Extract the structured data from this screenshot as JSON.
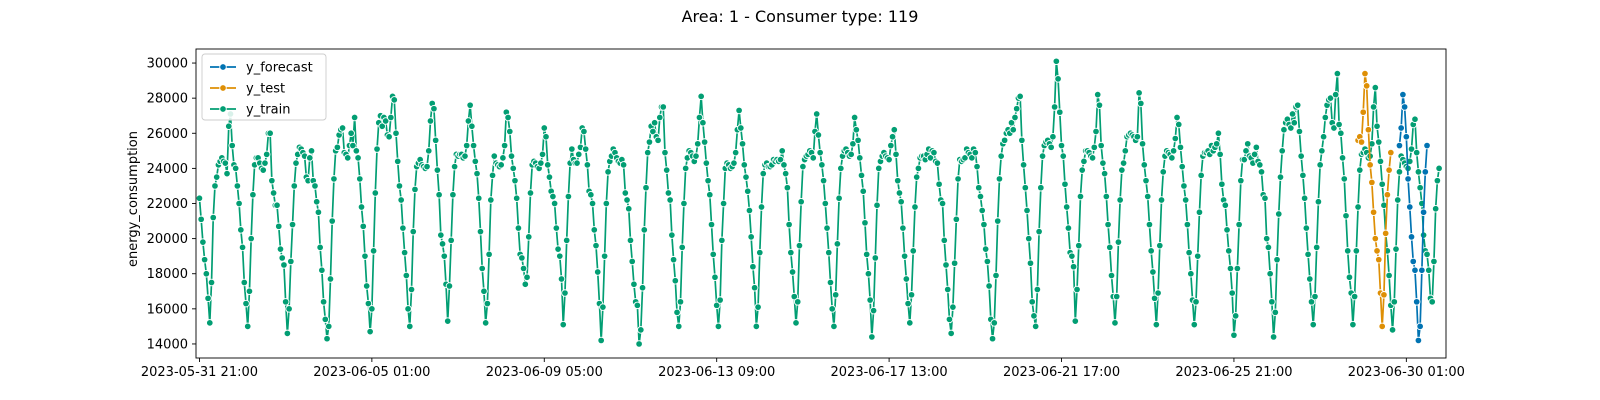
{
  "chart_data": {
    "type": "line",
    "title": "Area: 1 - Consumer type: 119",
    "xlabel": "",
    "ylabel": "energy_consumption",
    "x_tick_labels": [
      "2023-05-31 21:00",
      "2023-06-05 01:00",
      "2023-06-09 05:00",
      "2023-06-13 09:00",
      "2023-06-17 13:00",
      "2023-06-21 17:00",
      "2023-06-25 21:00",
      "2023-06-30 01:00"
    ],
    "y_ticks": [
      14000,
      16000,
      18000,
      20000,
      22000,
      24000,
      26000,
      28000,
      30000
    ],
    "ylim": [
      13200,
      30800
    ],
    "x_unit": "hours since 2023-05-31 21:00",
    "xlim": [
      -2,
      723
    ],
    "legend_position": "top-left",
    "grid": false,
    "series": [
      {
        "name": "y_forecast",
        "color": "#0173b2",
        "x_start": 696,
        "x_step": 1,
        "values": [
          25300,
          26300,
          28200,
          27500,
          25800,
          23400,
          21800,
          20100,
          18700,
          18200,
          16400,
          14200,
          15000,
          18200,
          21500,
          23800,
          25300
        ]
      },
      {
        "name": "y_test",
        "color": "#de8f05",
        "x_start": 672,
        "x_step": 1,
        "values": [
          25600,
          25800,
          25500,
          27200,
          29400,
          28700,
          26200,
          24200,
          23200,
          21500,
          20000,
          19300,
          18800,
          16900,
          15000,
          16800,
          20300,
          22500,
          23900,
          24900
        ]
      },
      {
        "name": "y_train",
        "color": "#029e73",
        "x_start": 0,
        "x_step": 1,
        "values": [
          22300,
          21100,
          19800,
          18800,
          18000,
          16600,
          15200,
          17500,
          21200,
          23000,
          23500,
          24200,
          24400,
          24600,
          24400,
          24300,
          23700,
          26400,
          27100,
          25300,
          24200,
          24000,
          23000,
          22000,
          20500,
          19500,
          17500,
          16300,
          15000,
          17000,
          20000,
          22500,
          24200,
          24600,
          24600,
          24300,
          24000,
          23900,
          24300,
          24800,
          26000,
          26000,
          23300,
          22600,
          21900,
          21900,
          20700,
          19400,
          18900,
          18500,
          16400,
          14600,
          16000,
          18700,
          20800,
          23000,
          24300,
          24800,
          25200,
          25100,
          24900,
          24700,
          23500,
          23300,
          24600,
          25000,
          23300,
          23000,
          22100,
          21500,
          19500,
          18200,
          16400,
          15400,
          14300,
          15000,
          17700,
          21000,
          23400,
          25000,
          25200,
          25900,
          26200,
          26300,
          24900,
          24800,
          24600,
          25300,
          26000,
          25300,
          26900,
          25000,
          24600,
          23400,
          21800,
          20700,
          19000,
          17300,
          16300,
          14700,
          16000,
          19300,
          22600,
          25100,
          26600,
          27000,
          26400,
          26900,
          26700,
          25900,
          25800,
          26900,
          28100,
          27900,
          26000,
          24400,
          23000,
          22200,
          20600,
          19200,
          17900,
          16000,
          15000,
          17100,
          20400,
          22800,
          24100,
          24300,
          24500,
          24200,
          24100,
          24000,
          24100,
          25000,
          26700,
          27700,
          27400,
          25600,
          23900,
          22500,
          20200,
          19700,
          19000,
          17400,
          15300,
          17300,
          19900,
          22500,
          24100,
          24800,
          24700,
          24800,
          24800,
          24600,
          24700,
          25300,
          26700,
          27600,
          26400,
          25300,
          24400,
          23700,
          22300,
          20400,
          18300,
          17000,
          15200,
          16300,
          19100,
          22200,
          23600,
          24700,
          24300,
          24200,
          24100,
          24200,
          24600,
          25300,
          27200,
          26900,
          26100,
          24700,
          24000,
          23300,
          22300,
          20600,
          19100,
          18900,
          18300,
          17400,
          17800,
          20100,
          22600,
          24200,
          24400,
          24300,
          24100,
          24000,
          24300,
          24800,
          26300,
          25800,
          24200,
          23500,
          22700,
          22400,
          22000,
          20600,
          19400,
          19000,
          17700,
          15100,
          16900,
          19900,
          22400,
          24300,
          25100,
          24500,
          24300,
          24300,
          24800,
          25200,
          26300,
          26100,
          25100,
          24200,
          22700,
          22500,
          22000,
          20500,
          19600,
          18100,
          16300,
          14200,
          16100,
          19000,
          22000,
          23800,
          24400,
          24700,
          25100,
          24900,
          24600,
          24400,
          24300,
          24500,
          24200,
          22600,
          22200,
          21700,
          19900,
          18700,
          17400,
          16400,
          16200,
          14000,
          14800,
          17200,
          20500,
          22900,
          24900,
          25500,
          26400,
          26100,
          26600,
          25800,
          25600,
          26900,
          27500,
          27500,
          24900,
          23900,
          22600,
          22200,
          20200,
          18800,
          17600,
          15800,
          15000,
          16400,
          19500,
          22000,
          24000,
          24600,
          25000,
          24900,
          24700,
          24400,
          24700,
          25400,
          26900,
          28100,
          26600,
          25500,
          24300,
          23300,
          22500,
          20800,
          19100,
          17800,
          16200,
          15000,
          16500,
          19900,
          22000,
          24000,
          24300,
          24200,
          24000,
          24100,
          24300,
          24900,
          26200,
          27300,
          26300,
          25400,
          24200,
          23500,
          22700,
          21600,
          20100,
          18400,
          17200,
          15000,
          16100,
          19200,
          21800,
          23700,
          24200,
          24300,
          24100,
          24100,
          24200,
          24500,
          24400,
          24500,
          24400,
          24500,
          25000,
          24200,
          23700,
          22900,
          20800,
          19200,
          18100,
          16700,
          15200,
          16400,
          19600,
          22100,
          24100,
          24500,
          24700,
          24800,
          25000,
          24900,
          24600,
          26100,
          27100,
          25900,
          24900,
          24200,
          23300,
          22000,
          20600,
          19200,
          17500,
          16000,
          15000,
          16800,
          19700,
          22300,
          24000,
          24700,
          25000,
          25100,
          24900,
          24700,
          24800,
          25400,
          26900,
          26200,
          25600,
          24600,
          23600,
          22700,
          20900,
          19100,
          18000,
          16500,
          14400,
          15900,
          18900,
          21900,
          24000,
          24400,
          24700,
          24900,
          24700,
          24600,
          24500,
          25300,
          25800,
          26200,
          24800,
          23300,
          22600,
          22100,
          20600,
          19000,
          17700,
          16300,
          15200,
          16800,
          19300,
          21800,
          23500,
          24000,
          24600,
          24700,
          24700,
          24500,
          24800,
          25100,
          24600,
          25000,
          24900,
          24400,
          24300,
          23100,
          22200,
          22000,
          19900,
          18500,
          17100,
          15400,
          14600,
          16100,
          18600,
          21100,
          23400,
          24500,
          24400,
          24500,
          24600,
          25100,
          24900,
          24800,
          24600,
          25100,
          24900,
          24100,
          22900,
          22400,
          21600,
          20800,
          19400,
          18700,
          17300,
          15400,
          14300,
          15200,
          17900,
          21000,
          23400,
          24700,
          25400,
          25600,
          26000,
          26200,
          26000,
          26600,
          26200,
          26900,
          27400,
          28000,
          28100,
          25600,
          24200,
          22900,
          21600,
          20000,
          18600,
          16400,
          15600,
          15000,
          17100,
          20400,
          22900,
          24700,
          25300,
          25500,
          25600,
          25400,
          25200,
          25800,
          27500,
          30100,
          29100,
          27200,
          25300,
          24700,
          23100,
          21800,
          20600,
          19200,
          19000,
          18400,
          15300,
          17100,
          19600,
          22400,
          23900,
          24400,
          25000,
          25000,
          24900,
          24700,
          24600,
          25200,
          26100,
          28200,
          27600,
          25300,
          24300,
          23700,
          22400,
          20800,
          19500,
          17900,
          16700,
          15200,
          16700,
          19800,
          22200,
          23900,
          24300,
          25000,
          25800,
          25900,
          26000,
          25900,
          25800,
          25600,
          25800,
          28300,
          27700,
          25400,
          24200,
          23300,
          22400,
          20800,
          19300,
          18100,
          16600,
          15100,
          16900,
          19600,
          22200,
          23800,
          24700,
          25000,
          24900,
          24800,
          24600,
          25000,
          25700,
          26900,
          26500,
          25200,
          24100,
          23000,
          22200,
          20800,
          19200,
          18000,
          16500,
          15100,
          16400,
          19000,
          21500,
          23600,
          24700,
          24900,
          24900,
          25000,
          24800,
          25300,
          25000,
          25200,
          25400,
          26000,
          24800,
          23100,
          22200,
          21900,
          20500,
          19300,
          18300,
          16900,
          14500,
          15600,
          18300,
          20800,
          23300,
          24500,
          24500,
          25000,
          25400,
          24700,
          24600,
          24300,
          24800,
          25200,
          24400,
          24200,
          23800,
          22500,
          22300,
          20000,
          19500,
          18000,
          16400,
          14400,
          15800,
          18800,
          21400,
          23500,
          25000,
          26200,
          26600,
          26800,
          26500,
          26300,
          27100,
          26600,
          27500,
          27600,
          26100,
          24700,
          23600,
          22300,
          20600,
          19100,
          17700,
          16400,
          15100,
          16700,
          19500,
          22100,
          24200,
          25000,
          25800,
          26900,
          27600,
          27900,
          28000,
          26600,
          26300,
          28200,
          29400,
          26500,
          26000,
          24600,
          23400,
          21300,
          19300,
          17800,
          16900,
          15100,
          16700,
          19300,
          21800,
          23900,
          24800,
          24900,
          25100,
          24900,
          24600,
          24700,
          25400,
          27500,
          28600,
          26400,
          25500,
          24400,
          23100,
          21900,
          20300,
          19300,
          17900,
          16200,
          14800,
          16400,
          19400,
          22200,
          23800,
          24700,
          24500,
          24300,
          24100,
          24000,
          24400,
          25100,
          26500,
          26800,
          24900,
          23800,
          22900,
          22000,
          20200,
          19300,
          19100,
          18200,
          16600,
          16400,
          18700,
          21700,
          23300,
          24000
        ]
      }
    ]
  }
}
